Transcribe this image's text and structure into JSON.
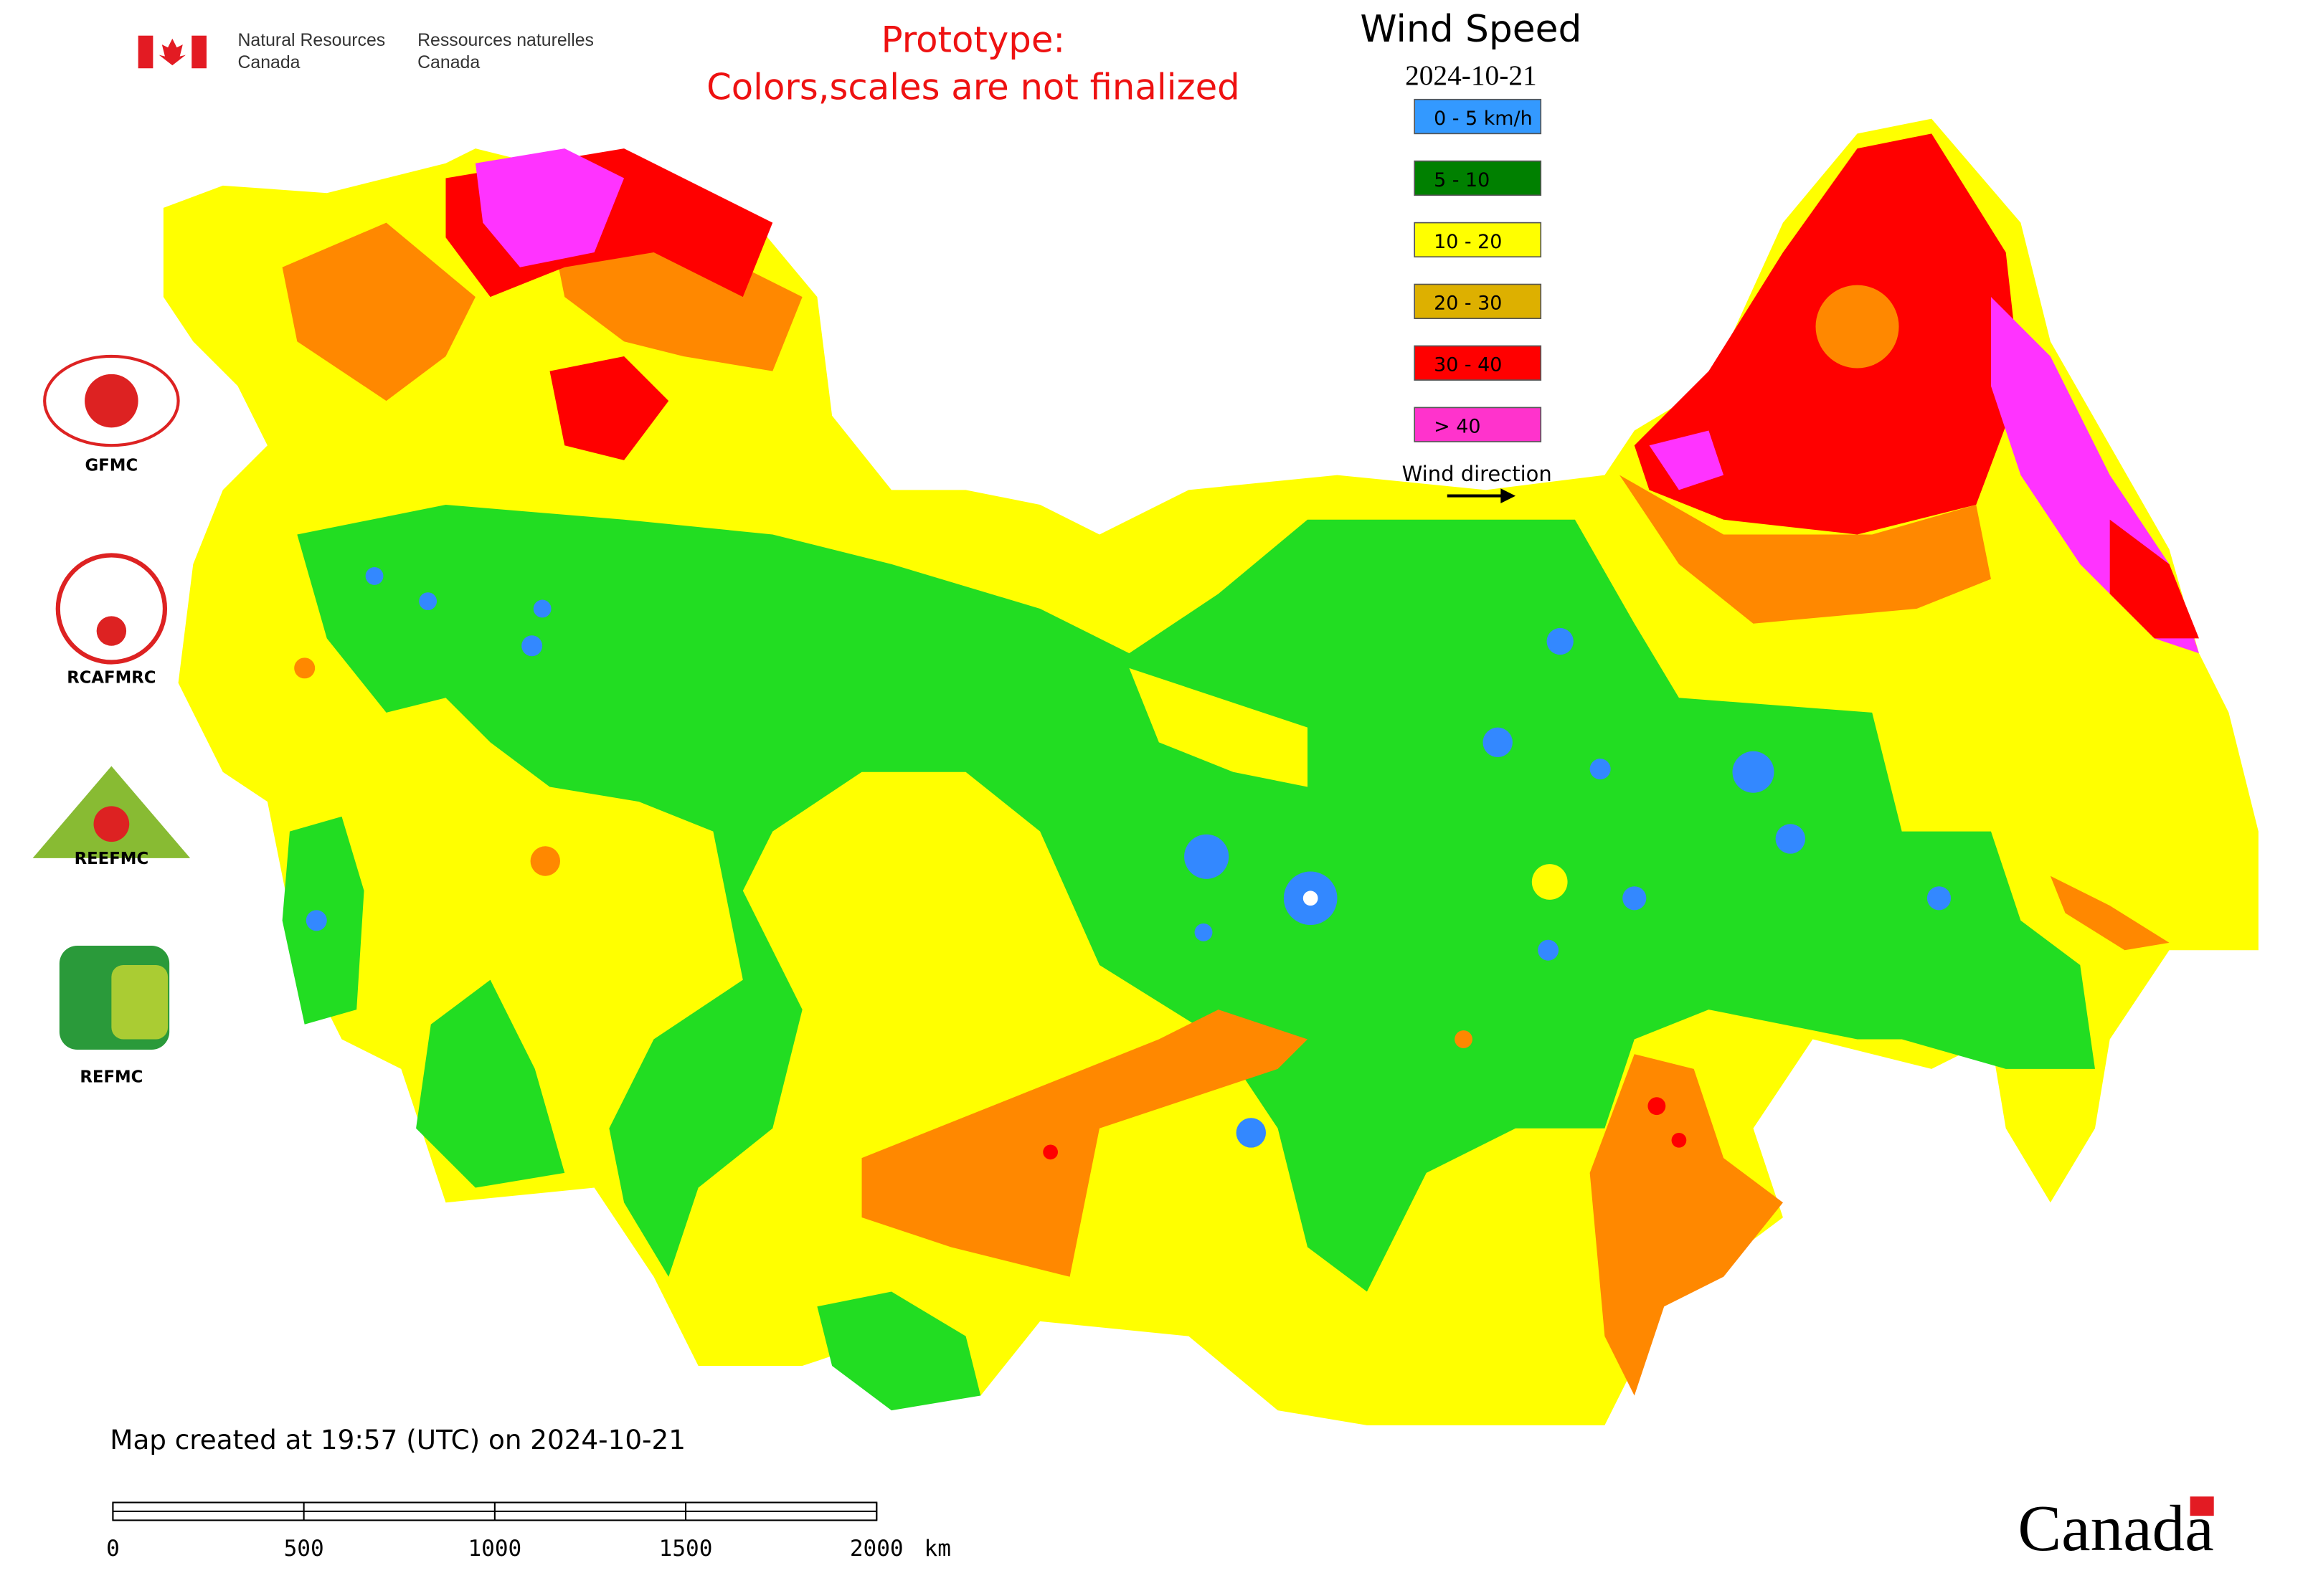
{
  "header": {
    "agency_en": [
      "Natural Resources",
      "Canada"
    ],
    "agency_fr": [
      "Ressources naturelles",
      "Canada"
    ],
    "notice": [
      "Prototype:",
      "Colors,scales are not finalized"
    ]
  },
  "legend": {
    "title": "Wind Speed",
    "date": "2024-10-21",
    "items": [
      {
        "label": "0 - 5 km/h",
        "color": "#3399ff"
      },
      {
        "label": "5 - 10",
        "color": "#008000"
      },
      {
        "label": "10 - 20",
        "color": "#ffff00"
      },
      {
        "label": "20 - 30",
        "color": "#ddb000"
      },
      {
        "label": "30 - 40",
        "color": "#ff0000"
      },
      {
        "label": "> 40",
        "color": "#ff33cc"
      }
    ],
    "direction_label": "Wind direction"
  },
  "logos": [
    "GFMC",
    "RCAFMRC",
    "REEFMC",
    "REFMC"
  ],
  "scale_bar": {
    "ticks": [
      0,
      500,
      1000,
      1500,
      2000
    ],
    "unit": "km"
  },
  "footer": {
    "created": "Map created at 19:57 (UTC) on 2024-10-21",
    "wordmark": "Canada"
  }
}
